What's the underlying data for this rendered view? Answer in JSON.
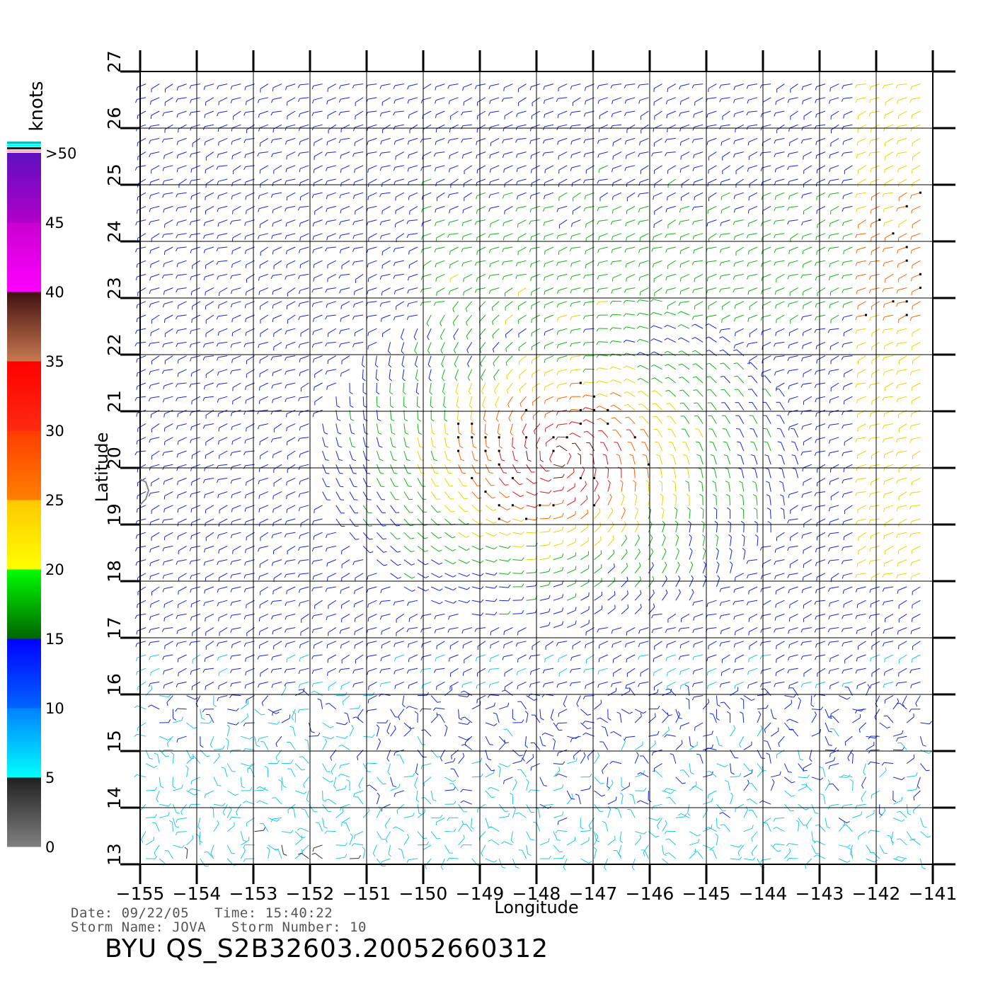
{
  "chart_data": {
    "type": "wind-vector-map",
    "xlabel": "Longitude",
    "ylabel": "Latitude",
    "xlim": [
      -155,
      -141
    ],
    "ylim": [
      13,
      27
    ],
    "xticks": [
      -155,
      -154,
      -153,
      -152,
      -151,
      -150,
      -149,
      -148,
      -147,
      -146,
      -145,
      -144,
      -143,
      -142,
      -141
    ],
    "xtick_labels": [
      "−155",
      "−154",
      "−153",
      "−152",
      "−151",
      "−150",
      "−149",
      "−148",
      "−147",
      "−146",
      "−145",
      "−144",
      "−143",
      "−142",
      "−141"
    ],
    "yticks": [
      13,
      14,
      15,
      16,
      17,
      18,
      19,
      20,
      21,
      22,
      23,
      24,
      25,
      26,
      27
    ],
    "ytick_labels": [
      "13",
      "14",
      "15",
      "16",
      "17",
      "18",
      "19",
      "20",
      "21",
      "22",
      "23",
      "24",
      "25",
      "26",
      "27"
    ],
    "grid": true,
    "colorbar": {
      "unit_label": "knots",
      "tick_labels": [
        "0",
        "5",
        "10",
        "15",
        "20",
        "25",
        "30",
        "35",
        "40",
        "45",
        ">50"
      ],
      "bands": [
        {
          "from": 0,
          "to": 5,
          "colors": [
            "#808080",
            "#202020"
          ]
        },
        {
          "from": 5,
          "to": 10,
          "colors": [
            "#00ffff",
            "#0080ff"
          ]
        },
        {
          "from": 10,
          "to": 15,
          "colors": [
            "#0064ff",
            "#0000ff"
          ]
        },
        {
          "from": 15,
          "to": 20,
          "colors": [
            "#006400",
            "#00ff00"
          ]
        },
        {
          "from": 20,
          "to": 25,
          "colors": [
            "#ffff00",
            "#ffc800"
          ]
        },
        {
          "from": 25,
          "to": 30,
          "colors": [
            "#ff8000",
            "#ff3c00"
          ]
        },
        {
          "from": 30,
          "to": 35,
          "colors": [
            "#ff2a10",
            "#ff0000"
          ]
        },
        {
          "from": 35,
          "to": 40,
          "colors": [
            "#c87850",
            "#401010"
          ]
        },
        {
          "from": 40,
          "to": 45,
          "colors": [
            "#ff00ff",
            "#c800d0"
          ]
        },
        {
          "from": 45,
          "to": 50,
          "colors": [
            "#b000c8",
            "#6010c0"
          ]
        }
      ]
    },
    "speed_color_scale": [
      {
        "max": 5,
        "color": "#303030"
      },
      {
        "max": 10,
        "color": "#1ec8e6"
      },
      {
        "max": 15,
        "color": "#1428dc"
      },
      {
        "max": 20,
        "color": "#14b414"
      },
      {
        "max": 25,
        "color": "#f0d200"
      },
      {
        "max": 30,
        "color": "#ff6400"
      },
      {
        "max": 35,
        "color": "#e61414"
      },
      {
        "max": 40,
        "color": "#5a1e14"
      },
      {
        "max": 99,
        "color": "#b414c8"
      }
    ],
    "storm_center": {
      "lon": -147.6,
      "lat": 20.2
    },
    "coastline": [
      [
        -155,
        19.8
      ],
      [
        -154.9,
        19.75
      ],
      [
        -154.85,
        19.6
      ],
      [
        -154.9,
        19.45
      ],
      [
        -155,
        19.35
      ]
    ]
  },
  "info": {
    "date_label": "Date:",
    "date": "09/22/05",
    "time_label": "Time:",
    "time": "15:40:22",
    "storm_name_label": "Storm  Name:",
    "storm_name": "JOVA",
    "storm_number_label": "Storm  Number:",
    "storm_number": "10",
    "product": "BYU  QS_S2B32603.20052660312"
  }
}
